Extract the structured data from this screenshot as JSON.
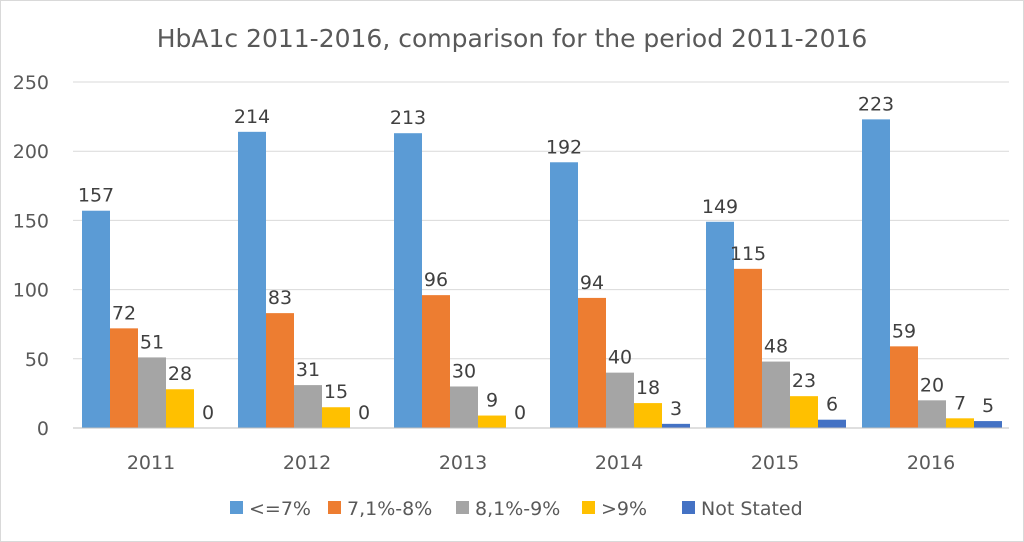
{
  "chart_data": {
    "type": "bar",
    "title": "HbA1c 2011-2016, comparison for the period 2011-2016",
    "xlabel": "",
    "ylabel": "",
    "categories": [
      "2011",
      "2012",
      "2013",
      "2014",
      "2015",
      "2016"
    ],
    "series": [
      {
        "name": "<=7%",
        "color": "#5b9bd5",
        "values": [
          157,
          214,
          213,
          192,
          149,
          223
        ]
      },
      {
        "name": "7,1%-8%",
        "color": "#ed7d31",
        "values": [
          72,
          83,
          96,
          94,
          115,
          59
        ]
      },
      {
        "name": "8,1%-9%",
        "color": "#a5a5a5",
        "values": [
          51,
          31,
          30,
          40,
          48,
          20
        ]
      },
      {
        "name": ">9%",
        "color": "#ffc000",
        "values": [
          28,
          15,
          9,
          18,
          23,
          7
        ]
      },
      {
        "name": "Not Stated",
        "color": "#4472c4",
        "values": [
          0,
          0,
          0,
          3,
          6,
          5
        ]
      }
    ],
    "ylim": [
      0,
      250
    ],
    "yticks": [
      0,
      50,
      100,
      150,
      200,
      250
    ],
    "grid": true,
    "legend": "bottom"
  }
}
